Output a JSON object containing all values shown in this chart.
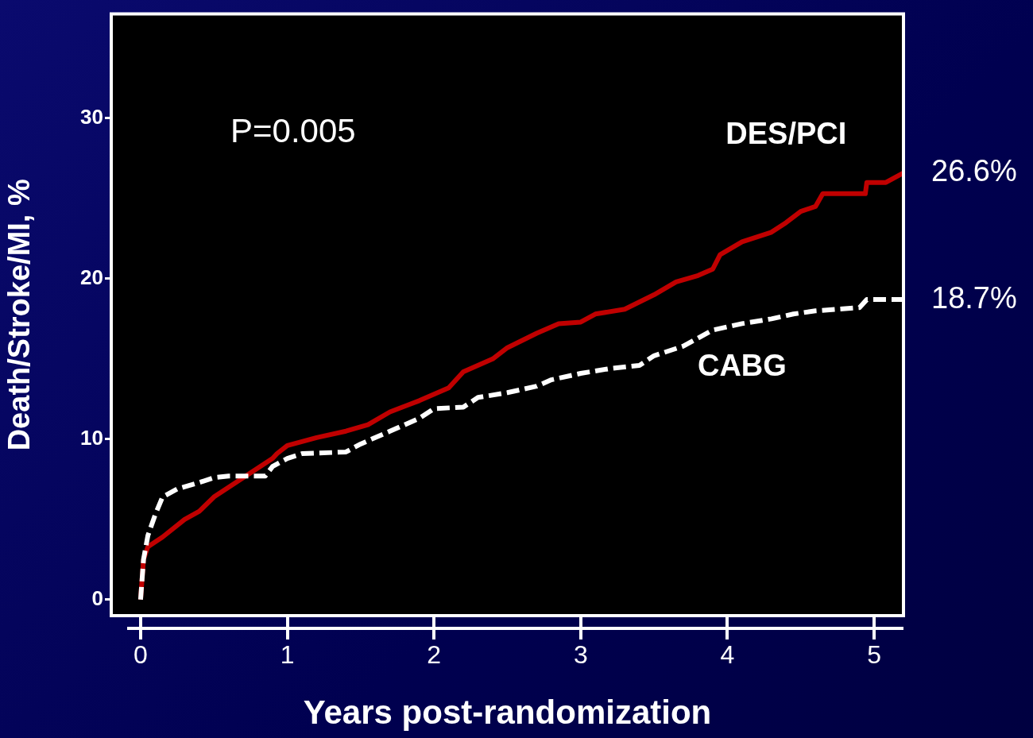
{
  "chart_data": {
    "type": "line",
    "xlabel": "Years post-randomization",
    "ylabel": "Death/Stroke/MI, %",
    "xlim": [
      -0.2,
      5.2
    ],
    "ylim": [
      -1,
      36.5
    ],
    "xticks": [
      0,
      1,
      2,
      3,
      4,
      5
    ],
    "yticks": [
      0,
      10,
      20,
      30
    ],
    "grid": false,
    "legend": false,
    "marker": "none",
    "series": [
      {
        "name": "DES/PCI",
        "color": "#c00000",
        "line_style": "solid",
        "x": [
          0,
          0.02,
          0.05,
          0.15,
          0.3,
          0.4,
          0.5,
          0.7,
          0.9,
          0.93,
          1.0,
          1.2,
          1.4,
          1.55,
          1.7,
          1.9,
          2.1,
          2.2,
          2.4,
          2.5,
          2.7,
          2.85,
          3.0,
          3.1,
          3.3,
          3.5,
          3.65,
          3.8,
          3.9,
          3.95,
          4.1,
          4.3,
          4.4,
          4.5,
          4.6,
          4.65,
          4.94,
          4.95,
          5.08,
          5.2
        ],
        "values": [
          0,
          2.5,
          3.3,
          3.9,
          5.0,
          5.5,
          6.4,
          7.6,
          8.8,
          9.1,
          9.6,
          10.1,
          10.5,
          10.9,
          11.7,
          12.4,
          13.2,
          14.2,
          15.0,
          15.7,
          16.6,
          17.2,
          17.3,
          17.8,
          18.1,
          19.0,
          19.8,
          20.2,
          20.6,
          21.5,
          22.3,
          22.9,
          23.5,
          24.2,
          24.5,
          25.3,
          25.3,
          26.0,
          26.0,
          26.6
        ]
      },
      {
        "name": "CABG",
        "color": "#ffffff",
        "line_style": "dashed",
        "x": [
          0,
          0.02,
          0.05,
          0.1,
          0.15,
          0.25,
          0.4,
          0.5,
          0.6,
          0.85,
          0.9,
          1.0,
          1.1,
          1.4,
          1.5,
          1.7,
          1.9,
          2.0,
          2.2,
          2.3,
          2.5,
          2.7,
          2.8,
          3.0,
          3.2,
          3.4,
          3.5,
          3.7,
          3.8,
          3.9,
          4.1,
          4.3,
          4.45,
          4.6,
          4.9,
          4.95,
          5.2
        ],
        "values": [
          0,
          2.5,
          4.0,
          5.3,
          6.4,
          6.9,
          7.3,
          7.6,
          7.7,
          7.7,
          8.3,
          8.8,
          9.1,
          9.2,
          9.7,
          10.5,
          11.3,
          11.9,
          12.0,
          12.6,
          12.9,
          13.3,
          13.7,
          14.1,
          14.4,
          14.6,
          15.2,
          15.8,
          16.3,
          16.8,
          17.2,
          17.5,
          17.8,
          18.0,
          18.2,
          18.7,
          18.7
        ]
      }
    ],
    "annotations": [
      "P=0.005",
      {
        "text": "26.6%",
        "x": 5.2,
        "y": 26.6
      },
      {
        "text": "18.7%",
        "x": 5.2,
        "y": 18.7
      }
    ]
  }
}
